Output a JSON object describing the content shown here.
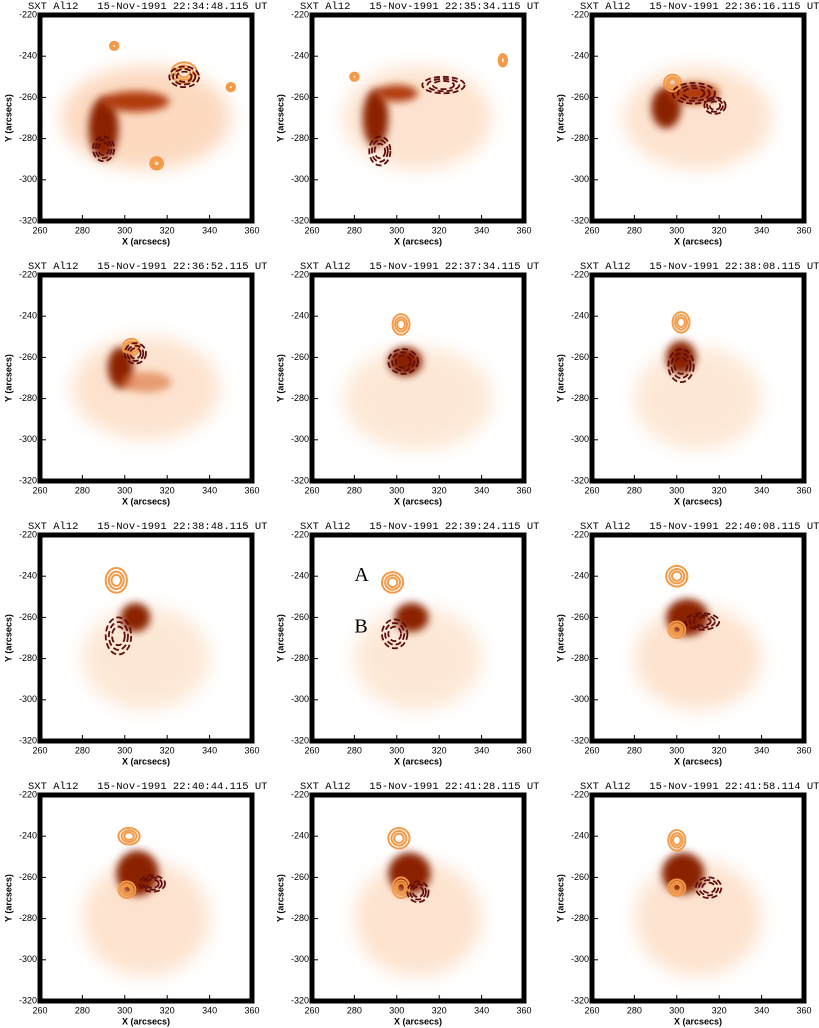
{
  "chart_data": [
    {
      "type": "image",
      "title": "SXT Al12   15-Nov-1991 22:34:48.115 UT",
      "xlabel": "X (arcsecs)",
      "ylabel": "Y (arcsecs)",
      "xlim": [
        260,
        360
      ],
      "ylim": [
        -320,
        -220
      ],
      "xticks": [
        260,
        280,
        300,
        320,
        340,
        360
      ],
      "yticks": [
        -320,
        -300,
        -280,
        -260,
        -240,
        -220
      ]
    },
    {
      "type": "image",
      "title": "SXT Al12   15-Nov-1991 22:35:34.115 UT",
      "xlabel": "X (arcsecs)",
      "ylabel": "Y (arcsecs)",
      "xlim": [
        260,
        360
      ],
      "ylim": [
        -320,
        -220
      ],
      "xticks": [
        260,
        280,
        300,
        320,
        340,
        360
      ],
      "yticks": [
        -320,
        -300,
        -280,
        -260,
        -240,
        -220
      ]
    },
    {
      "type": "image",
      "title": "SXT Al12   15-Nov-1991 22:36:16.115 UT",
      "xlabel": "X (arcsecs)",
      "ylabel": "Y (arcsecs)",
      "xlim": [
        260,
        360
      ],
      "ylim": [
        -320,
        -220
      ],
      "xticks": [
        260,
        280,
        300,
        320,
        340,
        360
      ],
      "yticks": [
        -320,
        -300,
        -280,
        -260,
        -240,
        -220
      ]
    },
    {
      "type": "image",
      "title": "SXT Al12   15-Nov-1991 22:36:52.115 UT",
      "xlabel": "X (arcsecs)",
      "ylabel": "Y (arcsecs)",
      "xlim": [
        260,
        360
      ],
      "ylim": [
        -320,
        -220
      ],
      "xticks": [
        260,
        280,
        300,
        320,
        340,
        360
      ],
      "yticks": [
        -320,
        -300,
        -280,
        -260,
        -240,
        -220
      ]
    },
    {
      "type": "image",
      "title": "SXT Al12   15-Nov-1991 22:37:34.115 UT",
      "xlabel": "X (arcsecs)",
      "ylabel": "Y (arcsecs)",
      "xlim": [
        260,
        360
      ],
      "ylim": [
        -320,
        -220
      ],
      "xticks": [
        260,
        280,
        300,
        320,
        340,
        360
      ],
      "yticks": [
        -320,
        -300,
        -280,
        -260,
        -240,
        -220
      ]
    },
    {
      "type": "image",
      "title": "SXT Al12   15-Nov-1991 22:38:08.115 UT",
      "xlabel": "X (arcsecs)",
      "ylabel": "Y (arcsecs)",
      "xlim": [
        260,
        360
      ],
      "ylim": [
        -320,
        -220
      ],
      "xticks": [
        260,
        280,
        300,
        320,
        340,
        360
      ],
      "yticks": [
        -320,
        -300,
        -280,
        -260,
        -240,
        -220
      ]
    },
    {
      "type": "image",
      "title": "SXT Al12   15-Nov-1991 22:38:48.115 UT",
      "xlabel": "X (arcsecs)",
      "ylabel": "Y (arcsecs)",
      "xlim": [
        260,
        360
      ],
      "ylim": [
        -320,
        -220
      ],
      "xticks": [
        260,
        280,
        300,
        320,
        340,
        360
      ],
      "yticks": [
        -320,
        -300,
        -280,
        -260,
        -240,
        -220
      ]
    },
    {
      "type": "image",
      "title": "SXT Al12   15-Nov-1991 22:39:24.115 UT",
      "xlabel": "X (arcsecs)",
      "ylabel": "Y (arcsecs)",
      "xlim": [
        260,
        360
      ],
      "ylim": [
        -320,
        -220
      ],
      "xticks": [
        260,
        280,
        300,
        320,
        340,
        360
      ],
      "yticks": [
        -320,
        -300,
        -280,
        -260,
        -240,
        -220
      ],
      "annotations": [
        "A",
        "B"
      ]
    },
    {
      "type": "image",
      "title": "SXT Al12   15-Nov-1991 22:40:08.115 UT",
      "xlabel": "X (arcsecs)",
      "ylabel": "Y (arcsecs)",
      "xlim": [
        260,
        360
      ],
      "ylim": [
        -320,
        -220
      ],
      "xticks": [
        260,
        280,
        300,
        320,
        340,
        360
      ],
      "yticks": [
        -320,
        -300,
        -280,
        -260,
        -240,
        -220
      ]
    },
    {
      "type": "image",
      "title": "SXT Al12   15-Nov-1991 22:40:44.115 UT",
      "xlabel": "X (arcsecs)",
      "ylabel": "Y (arcsecs)",
      "xlim": [
        260,
        360
      ],
      "ylim": [
        -320,
        -220
      ],
      "xticks": [
        260,
        280,
        300,
        320,
        340,
        360
      ],
      "yticks": [
        -320,
        -300,
        -280,
        -260,
        -240,
        -220
      ]
    },
    {
      "type": "image",
      "title": "SXT Al12   15-Nov-1991 22:41:28.115 UT",
      "xlabel": "X (arcsecs)",
      "ylabel": "Y (arcsecs)",
      "xlim": [
        260,
        360
      ],
      "ylim": [
        -320,
        -220
      ],
      "xticks": [
        260,
        280,
        300,
        320,
        340,
        360
      ],
      "yticks": [
        -320,
        -300,
        -280,
        -260,
        -240,
        -220
      ]
    },
    {
      "type": "image",
      "title": "SXT Al12   15-Nov-1991 22:41:58.114 UT",
      "xlabel": "X (arcsecs)",
      "ylabel": "Y (arcsecs)",
      "xlim": [
        260,
        360
      ],
      "ylim": [
        -320,
        -220
      ],
      "xticks": [
        260,
        280,
        300,
        320,
        340,
        360
      ],
      "yticks": [
        -320,
        -300,
        -280,
        -260,
        -240,
        -220
      ]
    }
  ]
}
